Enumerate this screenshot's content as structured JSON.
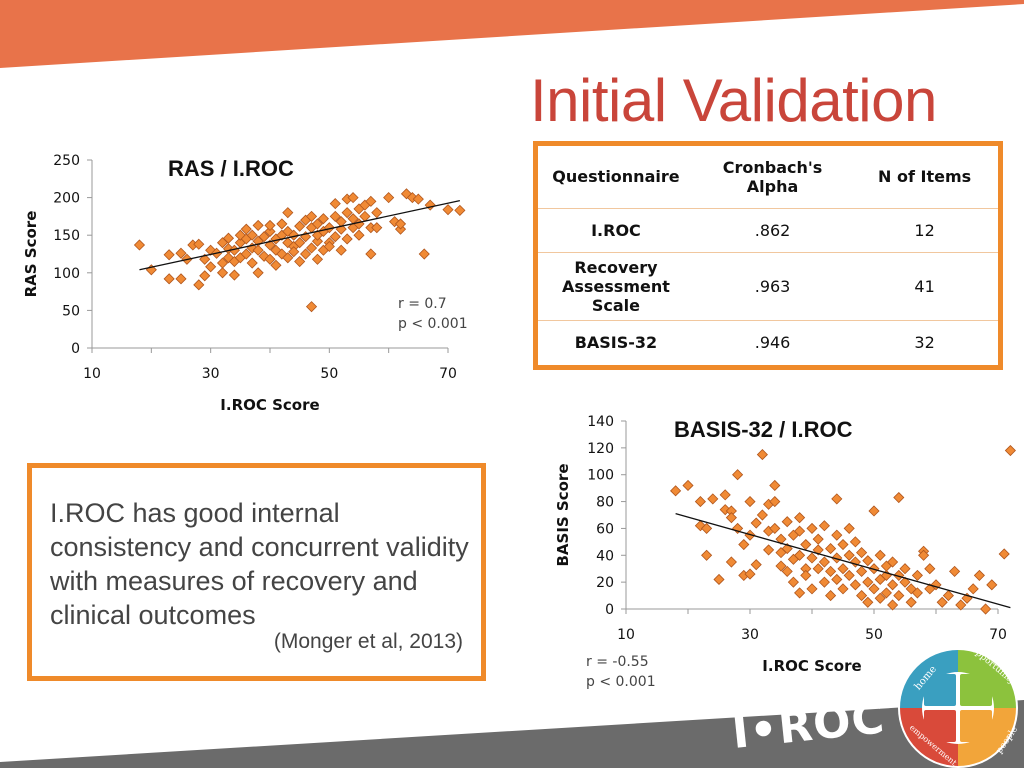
{
  "page": {
    "title": "Initial Validation"
  },
  "table": {
    "headers": [
      "Questionnaire",
      "Cronbach's Alpha",
      "N of Items"
    ],
    "rows": [
      {
        "name": "I.ROC",
        "alpha": ".862",
        "items": "12"
      },
      {
        "name": "Recovery Assessment Scale",
        "alpha": ".963",
        "items": "41"
      },
      {
        "name": "BASIS-32",
        "alpha": ".946",
        "items": "32"
      }
    ]
  },
  "callout": {
    "text": "I.ROC has good internal consistency and concurrent validity with measures of recovery and clinical outcomes",
    "citation": "(Monger et al, 2013)"
  },
  "logo": {
    "wordmark": "I•ROC",
    "segments": [
      "home",
      "opportunity",
      "empowerment",
      "people"
    ]
  },
  "colors": {
    "band": "#e8734a",
    "title": "#c9453a",
    "box_border": "#ef8a2a",
    "marker_fill": "#f08a35",
    "marker_edge": "#b0561d",
    "bottom_band": "#6b6b6b"
  },
  "chart_data": [
    {
      "type": "scatter",
      "title": "RAS / I.ROC",
      "xlabel": "I.ROC Score",
      "ylabel": "RAS Score",
      "xlim": [
        10,
        70
      ],
      "ylim": [
        0,
        250
      ],
      "xticks": [
        "10",
        "30",
        "50",
        "70"
      ],
      "yticks": [
        "0",
        "50",
        "100",
        "150",
        "200",
        "250"
      ],
      "stats": [
        "r = 0.7",
        "p < 0.001"
      ],
      "trendline": [
        [
          18,
          104
        ],
        [
          72,
          196
        ]
      ],
      "points": [
        [
          18,
          137
        ],
        [
          20,
          104
        ],
        [
          23,
          92
        ],
        [
          23,
          124
        ],
        [
          25,
          126
        ],
        [
          25,
          92
        ],
        [
          26,
          118
        ],
        [
          27,
          137
        ],
        [
          28,
          138
        ],
        [
          28,
          84
        ],
        [
          29,
          118
        ],
        [
          29,
          96
        ],
        [
          30,
          108
        ],
        [
          30,
          130
        ],
        [
          31,
          126
        ],
        [
          32,
          113
        ],
        [
          32,
          100
        ],
        [
          32,
          140
        ],
        [
          33,
          132
        ],
        [
          33,
          120
        ],
        [
          33,
          146
        ],
        [
          34,
          97
        ],
        [
          34,
          115
        ],
        [
          34,
          130
        ],
        [
          35,
          140
        ],
        [
          35,
          120
        ],
        [
          35,
          150
        ],
        [
          36,
          125
        ],
        [
          36,
          145
        ],
        [
          36,
          158
        ],
        [
          37,
          113
        ],
        [
          37,
          133
        ],
        [
          37,
          150
        ],
        [
          38,
          130
        ],
        [
          38,
          142
        ],
        [
          38,
          163
        ],
        [
          38,
          100
        ],
        [
          39,
          122
        ],
        [
          39,
          148
        ],
        [
          40,
          118
        ],
        [
          40,
          137
        ],
        [
          40,
          155
        ],
        [
          40,
          163
        ],
        [
          41,
          130
        ],
        [
          41,
          145
        ],
        [
          41,
          110
        ],
        [
          42,
          125
        ],
        [
          42,
          150
        ],
        [
          42,
          165
        ],
        [
          43,
          120
        ],
        [
          43,
          140
        ],
        [
          43,
          155
        ],
        [
          43,
          180
        ],
        [
          44,
          135
        ],
        [
          44,
          150
        ],
        [
          44,
          128
        ],
        [
          45,
          115
        ],
        [
          45,
          140
        ],
        [
          45,
          162
        ],
        [
          46,
          125
        ],
        [
          46,
          148
        ],
        [
          46,
          170
        ],
        [
          47,
          133
        ],
        [
          47,
          160
        ],
        [
          47,
          175
        ],
        [
          47,
          55
        ],
        [
          48,
          118
        ],
        [
          48,
          142
        ],
        [
          48,
          150
        ],
        [
          48,
          165
        ],
        [
          49,
          130
        ],
        [
          49,
          155
        ],
        [
          49,
          172
        ],
        [
          50,
          140
        ],
        [
          50,
          160
        ],
        [
          50,
          135
        ],
        [
          51,
          148
        ],
        [
          51,
          175
        ],
        [
          51,
          192
        ],
        [
          52,
          130
        ],
        [
          52,
          158
        ],
        [
          52,
          168
        ],
        [
          53,
          145
        ],
        [
          53,
          180
        ],
        [
          53,
          198
        ],
        [
          54,
          160
        ],
        [
          54,
          172
        ],
        [
          54,
          200
        ],
        [
          55,
          150
        ],
        [
          55,
          165
        ],
        [
          55,
          185
        ],
        [
          56,
          175
        ],
        [
          56,
          190
        ],
        [
          57,
          160
        ],
        [
          57,
          125
        ],
        [
          57,
          195
        ],
        [
          58,
          160
        ],
        [
          58,
          180
        ],
        [
          60,
          200
        ],
        [
          61,
          168
        ],
        [
          62,
          158
        ],
        [
          62,
          165
        ],
        [
          63,
          205
        ],
        [
          64,
          200
        ],
        [
          65,
          198
        ],
        [
          66,
          125
        ],
        [
          67,
          190
        ],
        [
          70,
          184
        ],
        [
          72,
          183
        ]
      ]
    },
    {
      "type": "scatter",
      "title": "BASIS-32 / I.ROC",
      "xlabel": "I.ROC Score",
      "ylabel": "BASIS Score",
      "xlim": [
        10,
        70
      ],
      "ylim": [
        0,
        140
      ],
      "xticks": [
        "10",
        "30",
        "50",
        "70"
      ],
      "yticks": [
        "0",
        "20",
        "40",
        "60",
        "80",
        "100",
        "120",
        "140"
      ],
      "stats": [
        "r = -0.55",
        "p < 0.001"
      ],
      "trendline": [
        [
          18,
          71
        ],
        [
          72,
          1
        ]
      ],
      "points": [
        [
          18,
          88
        ],
        [
          20,
          92
        ],
        [
          22,
          80
        ],
        [
          22,
          62
        ],
        [
          23,
          60
        ],
        [
          23,
          40
        ],
        [
          24,
          82
        ],
        [
          25,
          22
        ],
        [
          26,
          74
        ],
        [
          26,
          85
        ],
        [
          27,
          73
        ],
        [
          27,
          68
        ],
        [
          27,
          35
        ],
        [
          28,
          100
        ],
        [
          28,
          60
        ],
        [
          29,
          48
        ],
        [
          29,
          25
        ],
        [
          30,
          26
        ],
        [
          30,
          55
        ],
        [
          30,
          80
        ],
        [
          31,
          33
        ],
        [
          31,
          64
        ],
        [
          32,
          115
        ],
        [
          32,
          70
        ],
        [
          33,
          44
        ],
        [
          33,
          58
        ],
        [
          33,
          78
        ],
        [
          34,
          92
        ],
        [
          34,
          80
        ],
        [
          34,
          60
        ],
        [
          35,
          52
        ],
        [
          35,
          42
        ],
        [
          35,
          32
        ],
        [
          36,
          28
        ],
        [
          36,
          45
        ],
        [
          36,
          65
        ],
        [
          37,
          55
        ],
        [
          37,
          20
        ],
        [
          37,
          37
        ],
        [
          38,
          58
        ],
        [
          38,
          40
        ],
        [
          38,
          12
        ],
        [
          38,
          68
        ],
        [
          39,
          30
        ],
        [
          39,
          48
        ],
        [
          39,
          25
        ],
        [
          40,
          60
        ],
        [
          40,
          38
        ],
        [
          40,
          15
        ],
        [
          41,
          52
        ],
        [
          41,
          30
        ],
        [
          41,
          44
        ],
        [
          42,
          20
        ],
        [
          42,
          35
        ],
        [
          42,
          62
        ],
        [
          43,
          28
        ],
        [
          43,
          45
        ],
        [
          43,
          10
        ],
        [
          44,
          82
        ],
        [
          44,
          55
        ],
        [
          44,
          38
        ],
        [
          44,
          22
        ],
        [
          45,
          30
        ],
        [
          45,
          48
        ],
        [
          45,
          15
        ],
        [
          46,
          60
        ],
        [
          46,
          40
        ],
        [
          46,
          25
        ],
        [
          47,
          35
        ],
        [
          47,
          18
        ],
        [
          47,
          50
        ],
        [
          48,
          28
        ],
        [
          48,
          10
        ],
        [
          48,
          42
        ],
        [
          49,
          20
        ],
        [
          49,
          5
        ],
        [
          49,
          36
        ],
        [
          50,
          30
        ],
        [
          50,
          15
        ],
        [
          50,
          73
        ],
        [
          51,
          22
        ],
        [
          51,
          40
        ],
        [
          51,
          8
        ],
        [
          52,
          25
        ],
        [
          52,
          12
        ],
        [
          52,
          32
        ],
        [
          53,
          18
        ],
        [
          53,
          35
        ],
        [
          53,
          3
        ],
        [
          54,
          83
        ],
        [
          54,
          25
        ],
        [
          54,
          10
        ],
        [
          55,
          20
        ],
        [
          55,
          30
        ],
        [
          56,
          15
        ],
        [
          56,
          5
        ],
        [
          57,
          12
        ],
        [
          57,
          25
        ],
        [
          58,
          43
        ],
        [
          58,
          40
        ],
        [
          59,
          30
        ],
        [
          59,
          15
        ],
        [
          60,
          18
        ],
        [
          61,
          5
        ],
        [
          62,
          10
        ],
        [
          63,
          28
        ],
        [
          64,
          3
        ],
        [
          65,
          8
        ],
        [
          66,
          15
        ],
        [
          67,
          25
        ],
        [
          68,
          0
        ],
        [
          69,
          18
        ],
        [
          71,
          41
        ],
        [
          72,
          118
        ]
      ]
    }
  ]
}
